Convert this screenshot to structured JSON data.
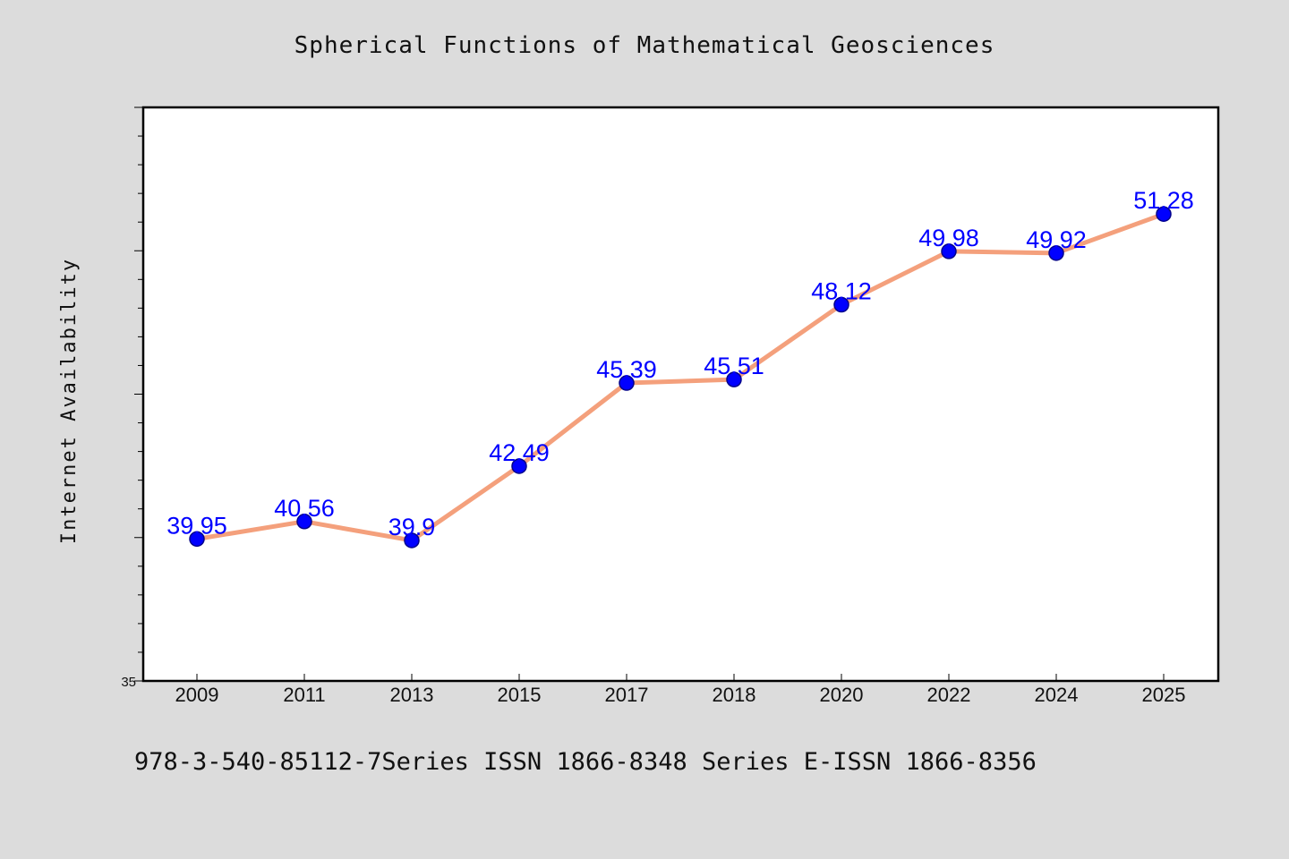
{
  "header": {
    "title": "Spherical Functions of Mathematical Geosciences"
  },
  "footer": {
    "text": "978-3-540-85112-7Series ISSN 1866-8348 Series E-ISSN 1866-8356"
  },
  "chart_data": {
    "type": "line",
    "ylabel": "Internet Availability",
    "xlabel": "",
    "categories": [
      "2009",
      "2011",
      "2013",
      "2015",
      "2017",
      "2018",
      "2020",
      "2022",
      "2024",
      "2025"
    ],
    "series": [
      {
        "values": [
          39.95,
          40.56,
          39.9,
          42.49,
          45.39,
          45.51,
          48.12,
          49.98,
          49.92,
          51.28
        ],
        "labels": [
          "39.95",
          "40.56",
          "39.9",
          "42.49",
          "45.39",
          "45.51",
          "48.12",
          "49.98",
          "49.92",
          "51.28"
        ]
      }
    ],
    "ylim": [
      35,
      55
    ],
    "y_tick_labels": [
      "35"
    ],
    "grid": false,
    "legend": "none",
    "colors": {
      "line": "#f4a07c",
      "marker": "#0000ff",
      "marker_edge": "#00008b",
      "data_label": "#0000ff",
      "axes_frame": "#000000",
      "plot_bg": "#ffffff",
      "page_bg": "#dcdcdc"
    }
  }
}
